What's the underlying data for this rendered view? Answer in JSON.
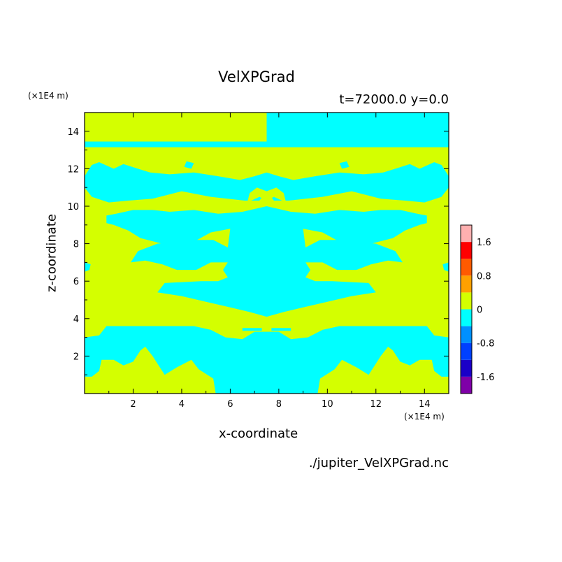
{
  "chart_data": {
    "type": "heatmap",
    "title": "VelXPGrad",
    "subtitle": "t=72000.0 y=0.0",
    "xlabel": "x-coordinate",
    "ylabel": "z-coordinate",
    "x_unit": "(×1E4 m)",
    "y_unit": "(×1E4 m)",
    "source_file": "./jupiter_VelXPGrad.nc",
    "xlim": [
      0,
      15
    ],
    "ylim": [
      0,
      15
    ],
    "x_ticks": [
      2,
      4,
      6,
      8,
      10,
      12,
      14
    ],
    "y_ticks": [
      2,
      4,
      6,
      8,
      10,
      12,
      14
    ],
    "colorbar": {
      "levels": [
        -2.0,
        -1.6,
        -1.2,
        -0.8,
        -0.4,
        0,
        0.4,
        0.8,
        1.2,
        1.6,
        2.0
      ],
      "colors": [
        "#7f00a8",
        "#1a00c8",
        "#0040ff",
        "#0090ff",
        "#00ffff",
        "#d4ff00",
        "#ffa000",
        "#ff5a00",
        "#ff0000",
        "#ffb0b0"
      ],
      "tick_labels": [
        "1.6",
        "0.8",
        "0",
        "-0.8",
        "-1.6"
      ],
      "tick_values": [
        1.6,
        0.8,
        0,
        -0.8,
        -1.6
      ]
    },
    "field_colors": {
      "positive": "#d4ff00",
      "negative": "#00ffff"
    },
    "regions_left": [
      {
        "sign": "negative",
        "z": [
          13.15,
          13.45
        ]
      },
      {
        "sign": "negative",
        "zone": "upper band",
        "z": [
          10.2,
          12.2
        ]
      },
      {
        "sign": "negative",
        "zone": "middle lobe",
        "z": [
          4.3,
          9.8
        ]
      },
      {
        "sign": "negative",
        "zone": "lower band",
        "z": [
          0,
          3.6
        ]
      }
    ]
  }
}
